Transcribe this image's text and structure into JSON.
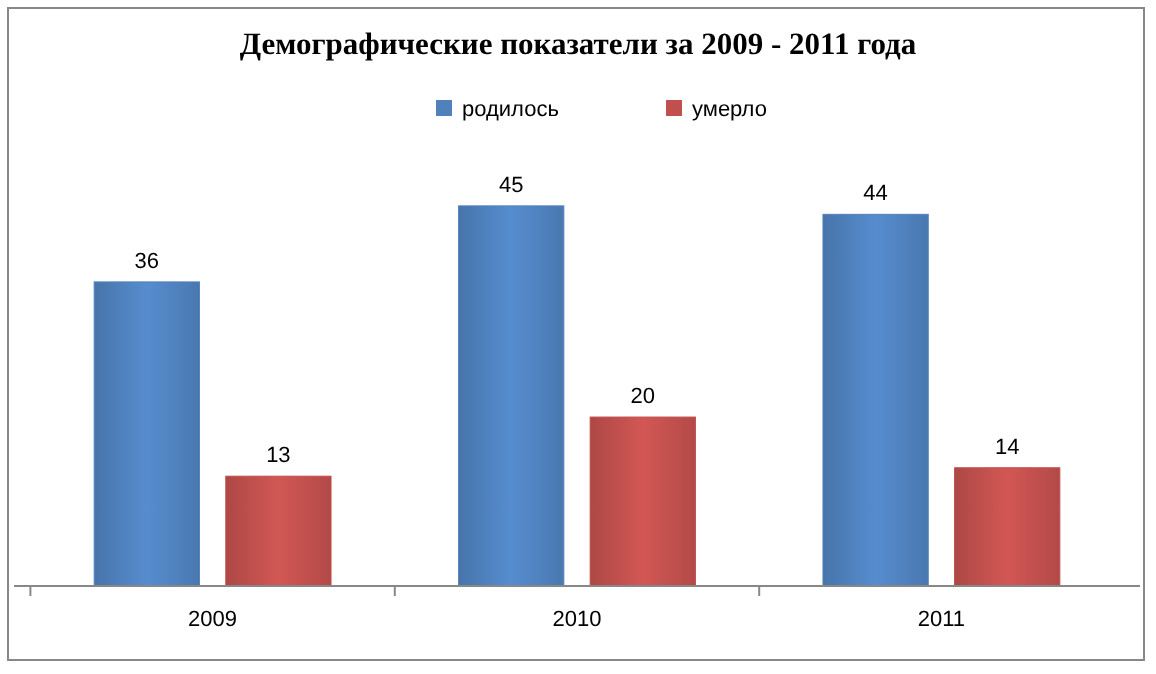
{
  "chart_data": {
    "type": "bar",
    "title": "Демографические показатели за 2009 - 2011 года",
    "categories": [
      "2009",
      "2010",
      "2011"
    ],
    "series": [
      {
        "name": "родилось",
        "color": "#4f81bd",
        "values": [
          36,
          45,
          44
        ]
      },
      {
        "name": "умерло",
        "color": "#c0504d",
        "values": [
          13,
          20,
          14
        ]
      }
    ],
    "data_labels": true,
    "legend": "top"
  }
}
